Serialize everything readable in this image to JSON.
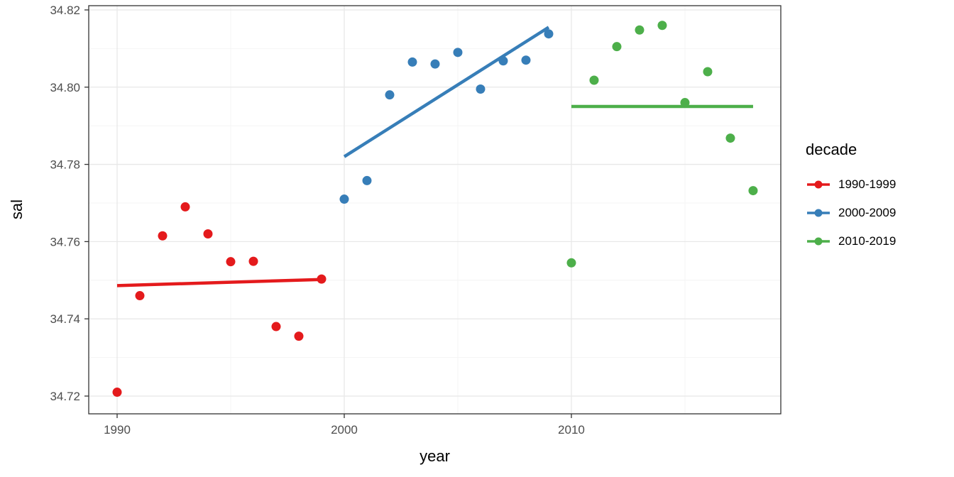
{
  "chart_data": {
    "type": "scatter",
    "title": "",
    "xlabel": "year",
    "ylabel": "sal",
    "xlim": [
      1988.75,
      2019.22
    ],
    "ylim": [
      34.7154,
      34.8211
    ],
    "grid": true,
    "x_ticks": [
      1990,
      2000,
      2010
    ],
    "x_tick_labels": [
      "1990",
      "2000",
      "2010"
    ],
    "x_minor_ticks": [
      1995,
      2005,
      2015
    ],
    "y_ticks": [
      34.72,
      34.74,
      34.76,
      34.78,
      34.8,
      34.82
    ],
    "y_tick_labels": [
      "34.72",
      "34.74",
      "34.76",
      "34.78",
      "34.80",
      "34.82"
    ],
    "y_minor_ticks": [
      34.73,
      34.75,
      34.77,
      34.79,
      34.81
    ],
    "legend": {
      "title": "decade",
      "position": "right"
    },
    "colors": {
      "background": "#ffffff",
      "panel_background": "#ffffff",
      "panel_border": "#333333",
      "grid_major": "#e8e8e8",
      "grid_minor": "#f4f4f4",
      "tick_mark": "#333333",
      "tick_label": "#4d4d4d",
      "axis_title": "#000000"
    },
    "series": [
      {
        "name": "1990-1999",
        "color": "#e41a1c",
        "x": [
          1990,
          1991,
          1992,
          1993,
          1994,
          1995,
          1996,
          1997,
          1998,
          1999
        ],
        "y": [
          34.721,
          34.746,
          34.7615,
          34.769,
          34.762,
          34.7548,
          34.7549,
          34.738,
          34.7355,
          34.7503
        ],
        "trend": {
          "x1": 1990,
          "y1": 34.7486,
          "x2": 1999,
          "y2": 34.7502
        }
      },
      {
        "name": "2000-2009",
        "color": "#377eb8",
        "x": [
          2000,
          2001,
          2002,
          2003,
          2004,
          2005,
          2006,
          2007,
          2008,
          2009
        ],
        "y": [
          34.771,
          34.7758,
          34.798,
          34.8065,
          34.806,
          34.809,
          34.7995,
          34.8068,
          34.807,
          34.8138
        ],
        "trend": {
          "x1": 2000,
          "y1": 34.782,
          "x2": 2009,
          "y2": 34.8155
        }
      },
      {
        "name": "2010-2019",
        "color": "#4daf4a",
        "x": [
          2010,
          2011,
          2012,
          2013,
          2014,
          2015,
          2016,
          2017,
          2018
        ],
        "y": [
          34.7545,
          34.8018,
          34.8105,
          34.8148,
          34.816,
          34.796,
          34.804,
          34.7868,
          34.7732
        ],
        "trend": {
          "x1": 2010,
          "y1": 34.795,
          "x2": 2018,
          "y2": 34.795
        }
      }
    ]
  }
}
